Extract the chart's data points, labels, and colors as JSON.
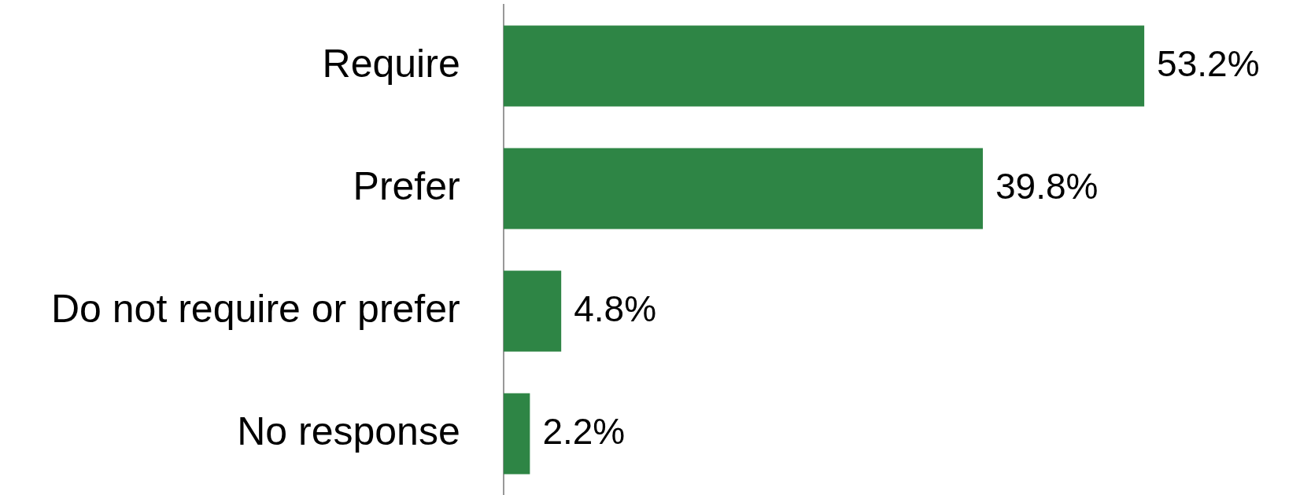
{
  "chart_data": {
    "type": "bar",
    "orientation": "horizontal",
    "categories": [
      "Require",
      "Prefer",
      "Do not require or prefer",
      "No response"
    ],
    "values": [
      53.2,
      39.8,
      4.8,
      2.2
    ],
    "value_labels": [
      "53.2%",
      "39.8%",
      "4.8%",
      "2.2%"
    ],
    "color": "#2e8545"
  }
}
